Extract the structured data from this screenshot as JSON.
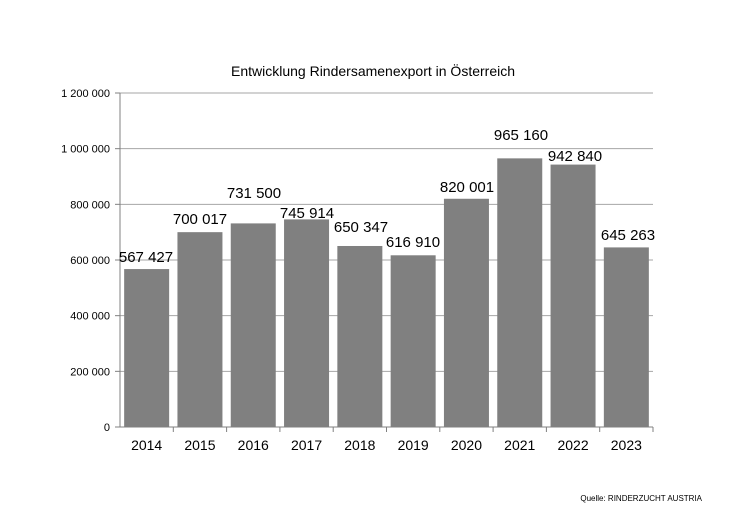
{
  "chart_data": {
    "type": "bar",
    "title": "Entwicklung Rindersamenexport in Österreich",
    "categories": [
      "2014",
      "2015",
      "2016",
      "2017",
      "2018",
      "2019",
      "2020",
      "2021",
      "2022",
      "2023"
    ],
    "values": [
      567427,
      700017,
      731500,
      745914,
      650347,
      616910,
      820001,
      965160,
      942840,
      645263
    ],
    "value_labels": [
      "567 427",
      "700 017",
      "731 500",
      "745 914",
      "650 347",
      "616 910",
      "820 001",
      "965 160",
      "942 840",
      "645 263"
    ],
    "y_ticks": [
      0,
      200000,
      400000,
      600000,
      800000,
      1000000,
      1200000
    ],
    "y_tick_labels": [
      "0",
      "200 000",
      "400 000",
      "600 000",
      "800 000",
      "1 000 000",
      "1 200 000"
    ],
    "ylim": [
      0,
      1200000
    ],
    "xlabel": "",
    "ylabel": "",
    "grid": true,
    "legend": "none",
    "bar_color": "#808080",
    "grid_color": "#a6a6a6"
  },
  "source": "Quelle: RINDERZUCHT AUSTRIA"
}
